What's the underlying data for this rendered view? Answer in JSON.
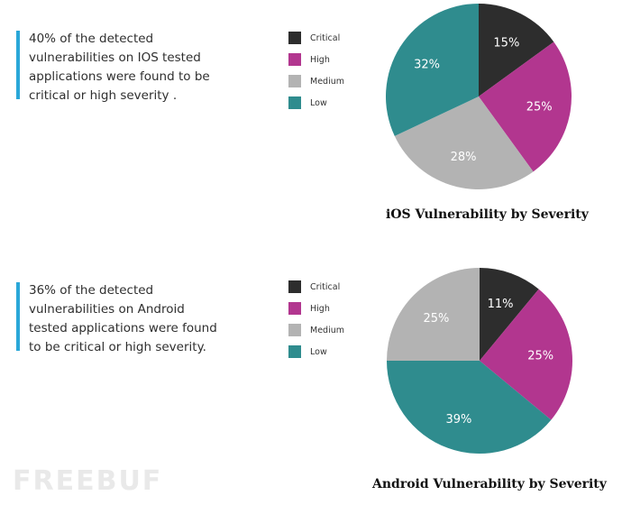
{
  "charts": [
    {
      "note": "40% of the detected\nvulnerabilities on IOS tested\napplications were found to be\ncritical or high severity .",
      "title": "iOS Vulnerability by Severity"
    },
    {
      "note": " 36% of the detected\nvulnerabilities on Android\ntested applications were found\nto be critical or high severity.",
      "title": "Android Vulnerability by Severity"
    }
  ],
  "legend": [
    "Critical",
    "High",
    "Medium",
    "Low"
  ],
  "colors": {
    "Critical": "#2d2d2d",
    "High": "#b2368f",
    "Medium": "#b3b3b3",
    "Low": "#2f8c8e"
  },
  "watermark": "FREEBUF",
  "chart_data": [
    {
      "type": "pie",
      "title": "iOS Vulnerability by Severity",
      "labels": [
        "Critical",
        "High",
        "Medium",
        "Low"
      ],
      "values": [
        15,
        25,
        28,
        32
      ],
      "value_labels": [
        "15%",
        "25%",
        "28%",
        "32%"
      ],
      "legend_position": "left"
    },
    {
      "type": "pie",
      "title": "Android Vulnerability by Severity",
      "labels": [
        "Critical",
        "High",
        "Low",
        "Medium"
      ],
      "values": [
        11,
        25,
        39,
        25
      ],
      "value_labels": [
        "11%",
        "25%",
        "39%",
        "25%"
      ],
      "legend_position": "left"
    }
  ]
}
